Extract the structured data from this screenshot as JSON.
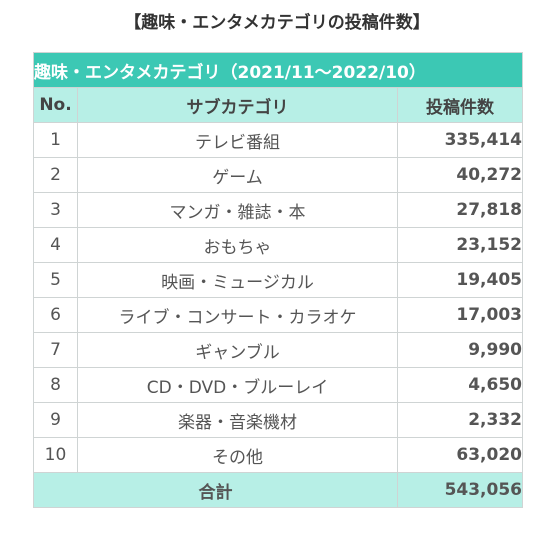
{
  "title": "【趣味・エンタメカテゴリの投稿件数】",
  "table": {
    "caption": "趣味・エンタメカテゴリ（2021/11～2022/10）",
    "headers": [
      "No.",
      "サブカテゴリ",
      "投稿件数"
    ],
    "rows": [
      {
        "no": "1",
        "category": "テレビ番組",
        "count": "335,414"
      },
      {
        "no": "2",
        "category": "ゲーム",
        "count": "40,272"
      },
      {
        "no": "3",
        "category": "マンガ・雑誌・本",
        "count": "27,818"
      },
      {
        "no": "4",
        "category": "おもちゃ",
        "count": "23,152"
      },
      {
        "no": "5",
        "category": "映画・ミュージカル",
        "count": "19,405"
      },
      {
        "no": "6",
        "category": "ライブ・コンサート・カラオケ",
        "count": "17,003"
      },
      {
        "no": "7",
        "category": "ギャンブル",
        "count": "9,990"
      },
      {
        "no": "8",
        "category": "CD・DVD・ブルーレイ",
        "count": "4,650"
      },
      {
        "no": "9",
        "category": "楽器・音楽機材",
        "count": "2,332"
      },
      {
        "no": "10",
        "category": "その他",
        "count": "63,020"
      }
    ],
    "total_label": "合計",
    "total_value": "543,056"
  },
  "colors": {
    "caption_bg": "#3cc8b4",
    "header_bg": "#b7efe6"
  }
}
